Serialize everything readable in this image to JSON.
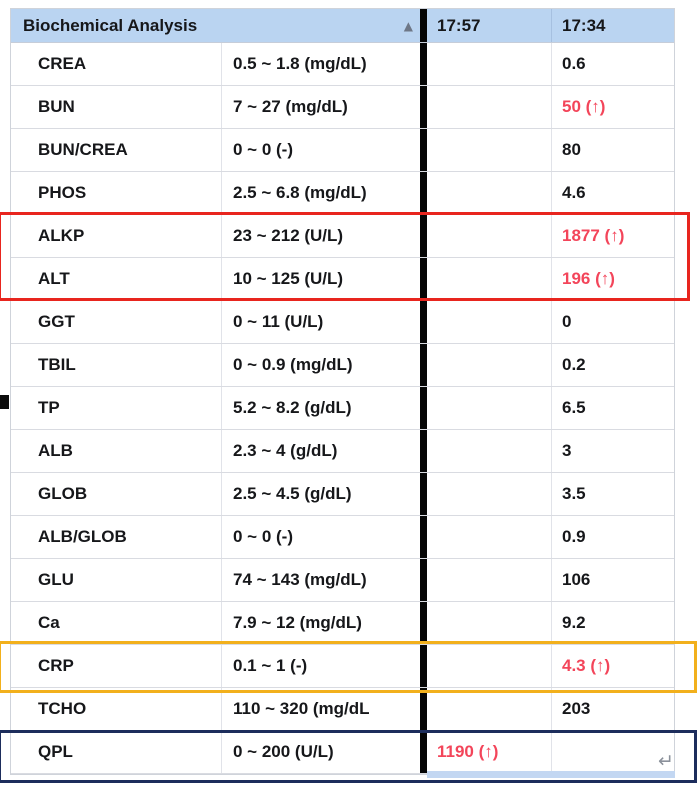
{
  "table": {
    "header": {
      "title": "Biochemical Analysis",
      "sort_icon": "▲",
      "time_columns": [
        "17:57",
        "17:34"
      ]
    },
    "rows": [
      {
        "name": "CREA",
        "range": "0.5 ~ 1.8 (mg/dL)",
        "t1757": "",
        "t1734": "0.6",
        "abn1757": false,
        "abn1734": false
      },
      {
        "name": "BUN",
        "range": "7 ~ 27 (mg/dL)",
        "t1757": "",
        "t1734": "50 (↑)",
        "abn1757": false,
        "abn1734": true
      },
      {
        "name": "BUN/CREA",
        "range": "0 ~ 0 (-)",
        "t1757": "",
        "t1734": "80",
        "abn1757": false,
        "abn1734": false
      },
      {
        "name": "PHOS",
        "range": "2.5 ~ 6.8 (mg/dL)",
        "t1757": "",
        "t1734": "4.6",
        "abn1757": false,
        "abn1734": false
      },
      {
        "name": "ALKP",
        "range": "23 ~ 212 (U/L)",
        "t1757": "",
        "t1734": "1877 (↑)",
        "abn1757": false,
        "abn1734": true
      },
      {
        "name": "ALT",
        "range": "10 ~ 125 (U/L)",
        "t1757": "",
        "t1734": "196 (↑)",
        "abn1757": false,
        "abn1734": true
      },
      {
        "name": "GGT",
        "range": "0 ~ 11 (U/L)",
        "t1757": "",
        "t1734": "0",
        "abn1757": false,
        "abn1734": false
      },
      {
        "name": "TBIL",
        "range": "0 ~ 0.9 (mg/dL)",
        "t1757": "",
        "t1734": "0.2",
        "abn1757": false,
        "abn1734": false
      },
      {
        "name": "TP",
        "range": "5.2 ~ 8.2 (g/dL)",
        "t1757": "",
        "t1734": "6.5",
        "abn1757": false,
        "abn1734": false
      },
      {
        "name": "ALB",
        "range": "2.3 ~ 4 (g/dL)",
        "t1757": "",
        "t1734": "3",
        "abn1757": false,
        "abn1734": false
      },
      {
        "name": "GLOB",
        "range": "2.5 ~ 4.5 (g/dL)",
        "t1757": "",
        "t1734": "3.5",
        "abn1757": false,
        "abn1734": false
      },
      {
        "name": "ALB/GLOB",
        "range": "0 ~ 0 (-)",
        "t1757": "",
        "t1734": "0.9",
        "abn1757": false,
        "abn1734": false
      },
      {
        "name": "GLU",
        "range": "74 ~ 143 (mg/dL)",
        "t1757": "",
        "t1734": "106",
        "abn1757": false,
        "abn1734": false
      },
      {
        "name": "Ca",
        "range": "7.9 ~ 12 (mg/dL)",
        "t1757": "",
        "t1734": "9.2",
        "abn1757": false,
        "abn1734": false
      },
      {
        "name": "CRP",
        "range": "0.1 ~ 1 (-)",
        "t1757": "",
        "t1734": "4.3 (↑)",
        "abn1757": false,
        "abn1734": true
      },
      {
        "name": "TCHO",
        "range": "110 ~ 320 (mg/dL",
        "t1757": "",
        "t1734": "203",
        "abn1757": false,
        "abn1734": false
      },
      {
        "name": "QPL",
        "range": "0 ~ 200 (U/L)",
        "t1757": "1190 (↑)",
        "t1734": "",
        "abn1757": true,
        "abn1734": false
      }
    ]
  },
  "annotations": {
    "red_box_rows": [
      "ALKP",
      "ALT"
    ],
    "yellow_box_rows": [
      "CRP"
    ],
    "navy_box_rows": [
      "QPL"
    ],
    "return_symbol": "↵"
  },
  "colors": {
    "header_bg": "#bad4f1",
    "abnormal_text": "#f3455a",
    "box_red": "#e8251e",
    "box_yellow": "#f2b01c",
    "box_navy": "#1d2d5c",
    "column_divider": "#050505"
  }
}
